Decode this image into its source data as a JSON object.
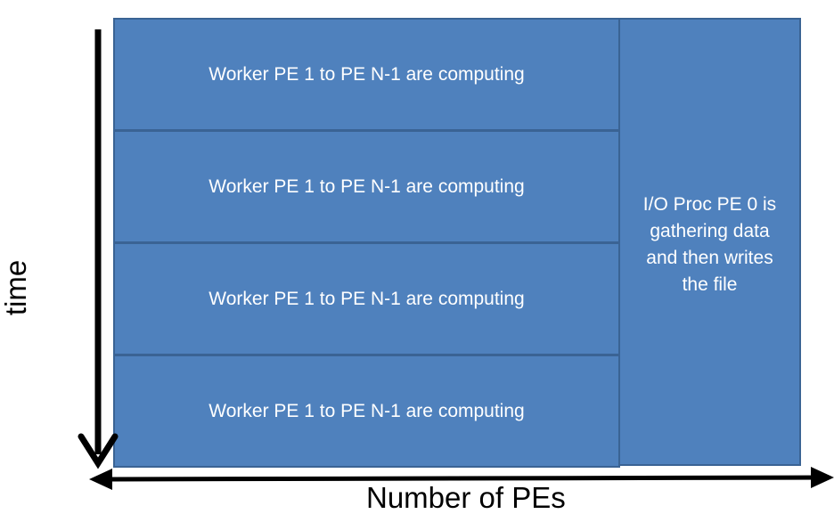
{
  "diagram": {
    "worker_rows": [
      {
        "label": "Worker PE 1 to PE N-1 are computing"
      },
      {
        "label": "Worker PE 1 to PE N-1 are computing"
      },
      {
        "label": "Worker PE 1 to PE N-1 are computing"
      },
      {
        "label": "Worker PE 1 to PE N-1 are computing"
      }
    ],
    "io_block": {
      "label": "I/O Proc PE 0 is\ngathering data\nand then writes\nthe file"
    },
    "x_axis": {
      "label": "Number of  PEs"
    },
    "y_axis": {
      "label": "time"
    },
    "colors": {
      "block_fill": "#4f81bd",
      "block_border": "#3a6394",
      "text": "#ffffff",
      "axis": "#000000"
    }
  }
}
